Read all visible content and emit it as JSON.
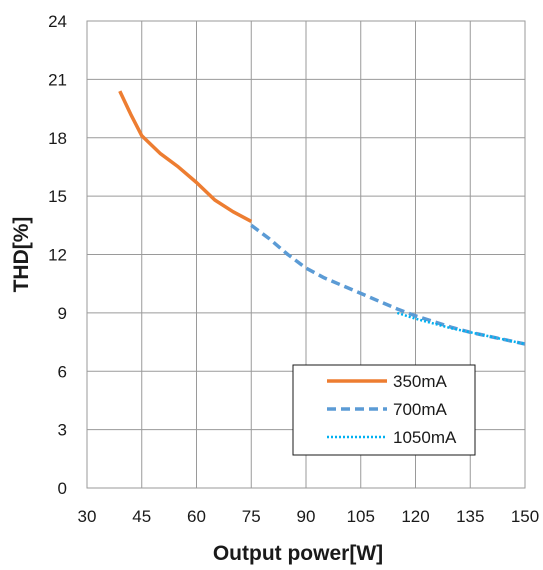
{
  "chart_data": {
    "type": "line",
    "xlabel": "Output power[W]",
    "ylabel": "THD[%]",
    "xlim": [
      30,
      150
    ],
    "ylim": [
      0,
      24
    ],
    "xticks": [
      30,
      45,
      60,
      75,
      90,
      105,
      120,
      135,
      150
    ],
    "yticks": [
      0,
      3,
      6,
      9,
      12,
      15,
      18,
      21,
      24
    ],
    "grid": true,
    "legend_position": "bottom-right",
    "series": [
      {
        "name": "350mA",
        "color": "#ED7D31",
        "style": "solid",
        "x": [
          39,
          42,
          45,
          50,
          55,
          60,
          65,
          70,
          75
        ],
        "y": [
          20.4,
          19.2,
          18.1,
          17.2,
          16.5,
          15.7,
          14.8,
          14.2,
          13.7
        ]
      },
      {
        "name": "700mA",
        "color": "#5B9BD5",
        "style": "dashed",
        "x": [
          75,
          80,
          85,
          90,
          95,
          100,
          105,
          110,
          115,
          120,
          125,
          130,
          135,
          140,
          145,
          150
        ],
        "y": [
          13.5,
          12.8,
          12.0,
          11.3,
          10.8,
          10.4,
          10.0,
          9.6,
          9.2,
          8.85,
          8.55,
          8.25,
          8.0,
          7.8,
          7.6,
          7.4
        ]
      },
      {
        "name": "1050mA",
        "color": "#00B0F0",
        "style": "dotted",
        "x": [
          115,
          120,
          125,
          130,
          135,
          140,
          145,
          150
        ],
        "y": [
          9.0,
          8.7,
          8.45,
          8.2,
          8.0,
          7.8,
          7.6,
          7.4
        ]
      }
    ]
  }
}
